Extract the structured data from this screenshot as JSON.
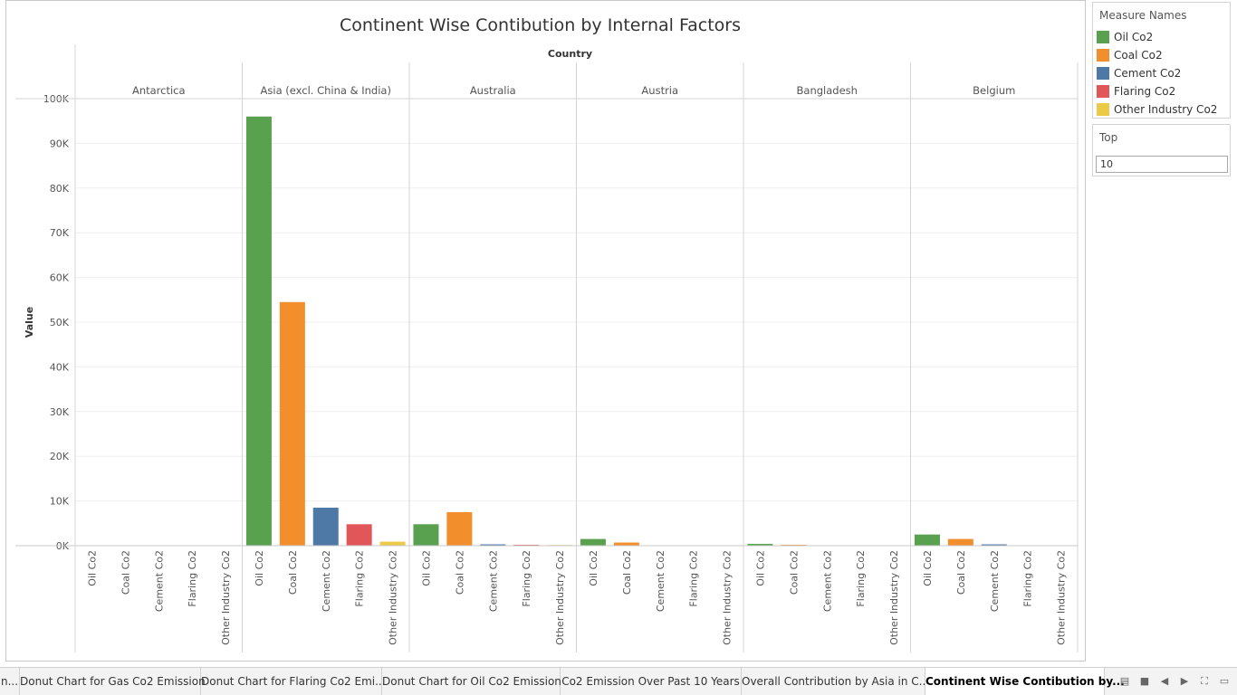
{
  "chart_data": {
    "type": "bar",
    "title": "Continent Wise Contibution by Internal Factors",
    "column_header": "Country",
    "ylabel": "Value",
    "ylim": [
      0,
      100000
    ],
    "yticks": [
      0,
      10000,
      20000,
      30000,
      40000,
      50000,
      60000,
      70000,
      80000,
      90000,
      100000
    ],
    "ytick_labels": [
      "0K",
      "10K",
      "20K",
      "30K",
      "40K",
      "50K",
      "60K",
      "70K",
      "80K",
      "90K",
      "100K"
    ],
    "grid": true,
    "panels": [
      "Antarctica",
      "Asia (excl. China & India)",
      "Australia",
      "Austria",
      "Bangladesh",
      "Belgium"
    ],
    "categories": [
      "Oil Co2",
      "Coal Co2",
      "Cement Co2",
      "Flaring Co2",
      "Other Industry Co2"
    ],
    "series": [
      {
        "name": "Antarctica",
        "values": [
          0,
          0,
          0,
          0,
          0
        ]
      },
      {
        "name": "Asia (excl. China & India)",
        "values": [
          96000,
          54500,
          8500,
          4800,
          900
        ]
      },
      {
        "name": "Australia",
        "values": [
          4800,
          7500,
          300,
          200,
          150
        ]
      },
      {
        "name": "Austria",
        "values": [
          1500,
          700,
          0,
          0,
          0
        ]
      },
      {
        "name": "Bangladesh",
        "values": [
          400,
          200,
          0,
          0,
          0
        ]
      },
      {
        "name": "Belgium",
        "values": [
          2500,
          1500,
          300,
          0,
          0
        ]
      }
    ],
    "colors": [
      "#59a14f",
      "#f28e2b",
      "#4e79a7",
      "#e15759",
      "#edc948"
    ]
  },
  "legend": {
    "title": "Measure Names",
    "items": [
      "Oil Co2",
      "Coal Co2",
      "Cement Co2",
      "Flaring Co2",
      "Other Industry Co2"
    ]
  },
  "filter": {
    "title": "Top",
    "value": "10"
  },
  "tabs": [
    "n...",
    "Donut Chart for Gas Co2 Emission",
    "Donut Chart for Flaring Co2 Emi...",
    "Donut Chart for Oil Co2 Emission",
    "Co2 Emission Over Past 10 Years",
    "Overall Contribution by Asia in C...",
    "Continent Wise Contibution by..."
  ],
  "active_tab": 6,
  "nav_icons": [
    "grid-view-icon",
    "filmstrip-icon",
    "prev-sheet-icon",
    "next-sheet-icon",
    "fit-screen-icon",
    "presentation-mode-icon"
  ]
}
